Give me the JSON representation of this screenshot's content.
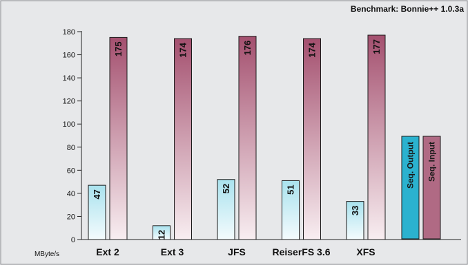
{
  "chart_data": {
    "type": "bar",
    "title": "Benchmark: Bonnie++ 1.0.3a",
    "ylabel": "MByte/s",
    "ylim": [
      0,
      180
    ],
    "yticks": [
      0,
      20,
      40,
      60,
      80,
      100,
      120,
      140,
      160,
      180
    ],
    "categories": [
      "Ext 2",
      "Ext 3",
      "JFS",
      "ReiserFS 3.6",
      "XFS"
    ],
    "series": [
      {
        "name": "Seq. Output",
        "values": [
          47,
          12,
          52,
          51,
          33
        ],
        "color": "#2bb2cf"
      },
      {
        "name": "Seq. Input",
        "values": [
          175,
          174,
          176,
          174,
          177
        ],
        "color": "#b06a84"
      }
    ],
    "grid": false,
    "legend_position": "right"
  }
}
